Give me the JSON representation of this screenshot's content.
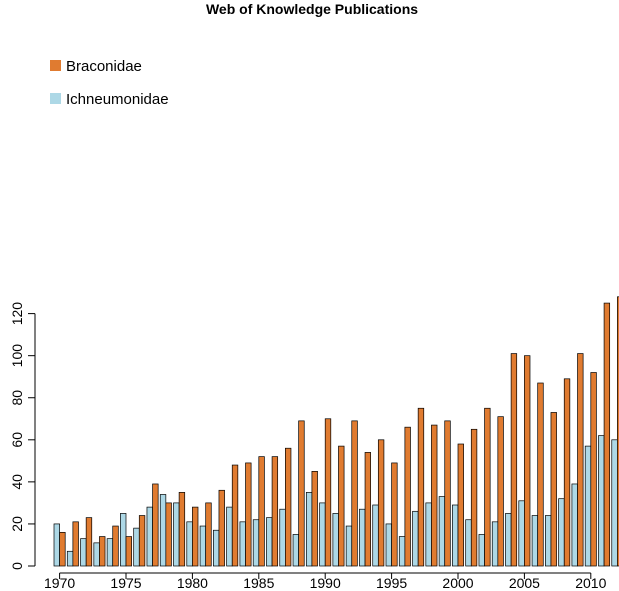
{
  "chart_data": {
    "type": "bar",
    "title": "Web of Knowledge Publications",
    "xlabel": "",
    "ylabel": "",
    "categories": [
      1970,
      1971,
      1972,
      1973,
      1974,
      1975,
      1976,
      1977,
      1978,
      1979,
      1980,
      1981,
      1982,
      1983,
      1984,
      1985,
      1986,
      1987,
      1988,
      1989,
      1990,
      1991,
      1992,
      1993,
      1994,
      1995,
      1996,
      1997,
      1998,
      1999,
      2000,
      2001,
      2002,
      2003,
      2004,
      2005,
      2006,
      2007,
      2008,
      2009,
      2010,
      2011,
      2012
    ],
    "series": [
      {
        "name": "Ichneumonidae",
        "color": "#add8e6",
        "values": [
          20,
          7,
          13,
          11,
          13,
          25,
          18,
          28,
          34,
          30,
          21,
          19,
          17,
          28,
          21,
          22,
          23,
          27,
          15,
          35,
          30,
          25,
          19,
          27,
          29,
          20,
          14,
          26,
          30,
          33,
          29,
          22,
          15,
          21,
          25,
          31,
          24,
          24,
          32,
          39,
          57,
          62,
          60
        ]
      },
      {
        "name": "Braconidae",
        "color": "#e07b30",
        "values": [
          16,
          21,
          23,
          14,
          19,
          14,
          24,
          39,
          30,
          35,
          28,
          30,
          36,
          48,
          49,
          52,
          52,
          56,
          69,
          45,
          70,
          57,
          69,
          54,
          60,
          49,
          66,
          75,
          67,
          69,
          58,
          65,
          75,
          71,
          101,
          100,
          87,
          73,
          89,
          101,
          92,
          125,
          128
        ]
      }
    ],
    "x_ticks": [
      "1970",
      "1975",
      "1980",
      "1985",
      "1990",
      "1995",
      "2000",
      "2005",
      "2010"
    ],
    "y_ticks": [
      0,
      20,
      40,
      60,
      80,
      100,
      120
    ],
    "ylim": [
      0,
      128
    ],
    "legend": {
      "position": "top-left",
      "entries": [
        "Braconidae",
        "Ichneumonidae"
      ]
    },
    "grid": false
  }
}
